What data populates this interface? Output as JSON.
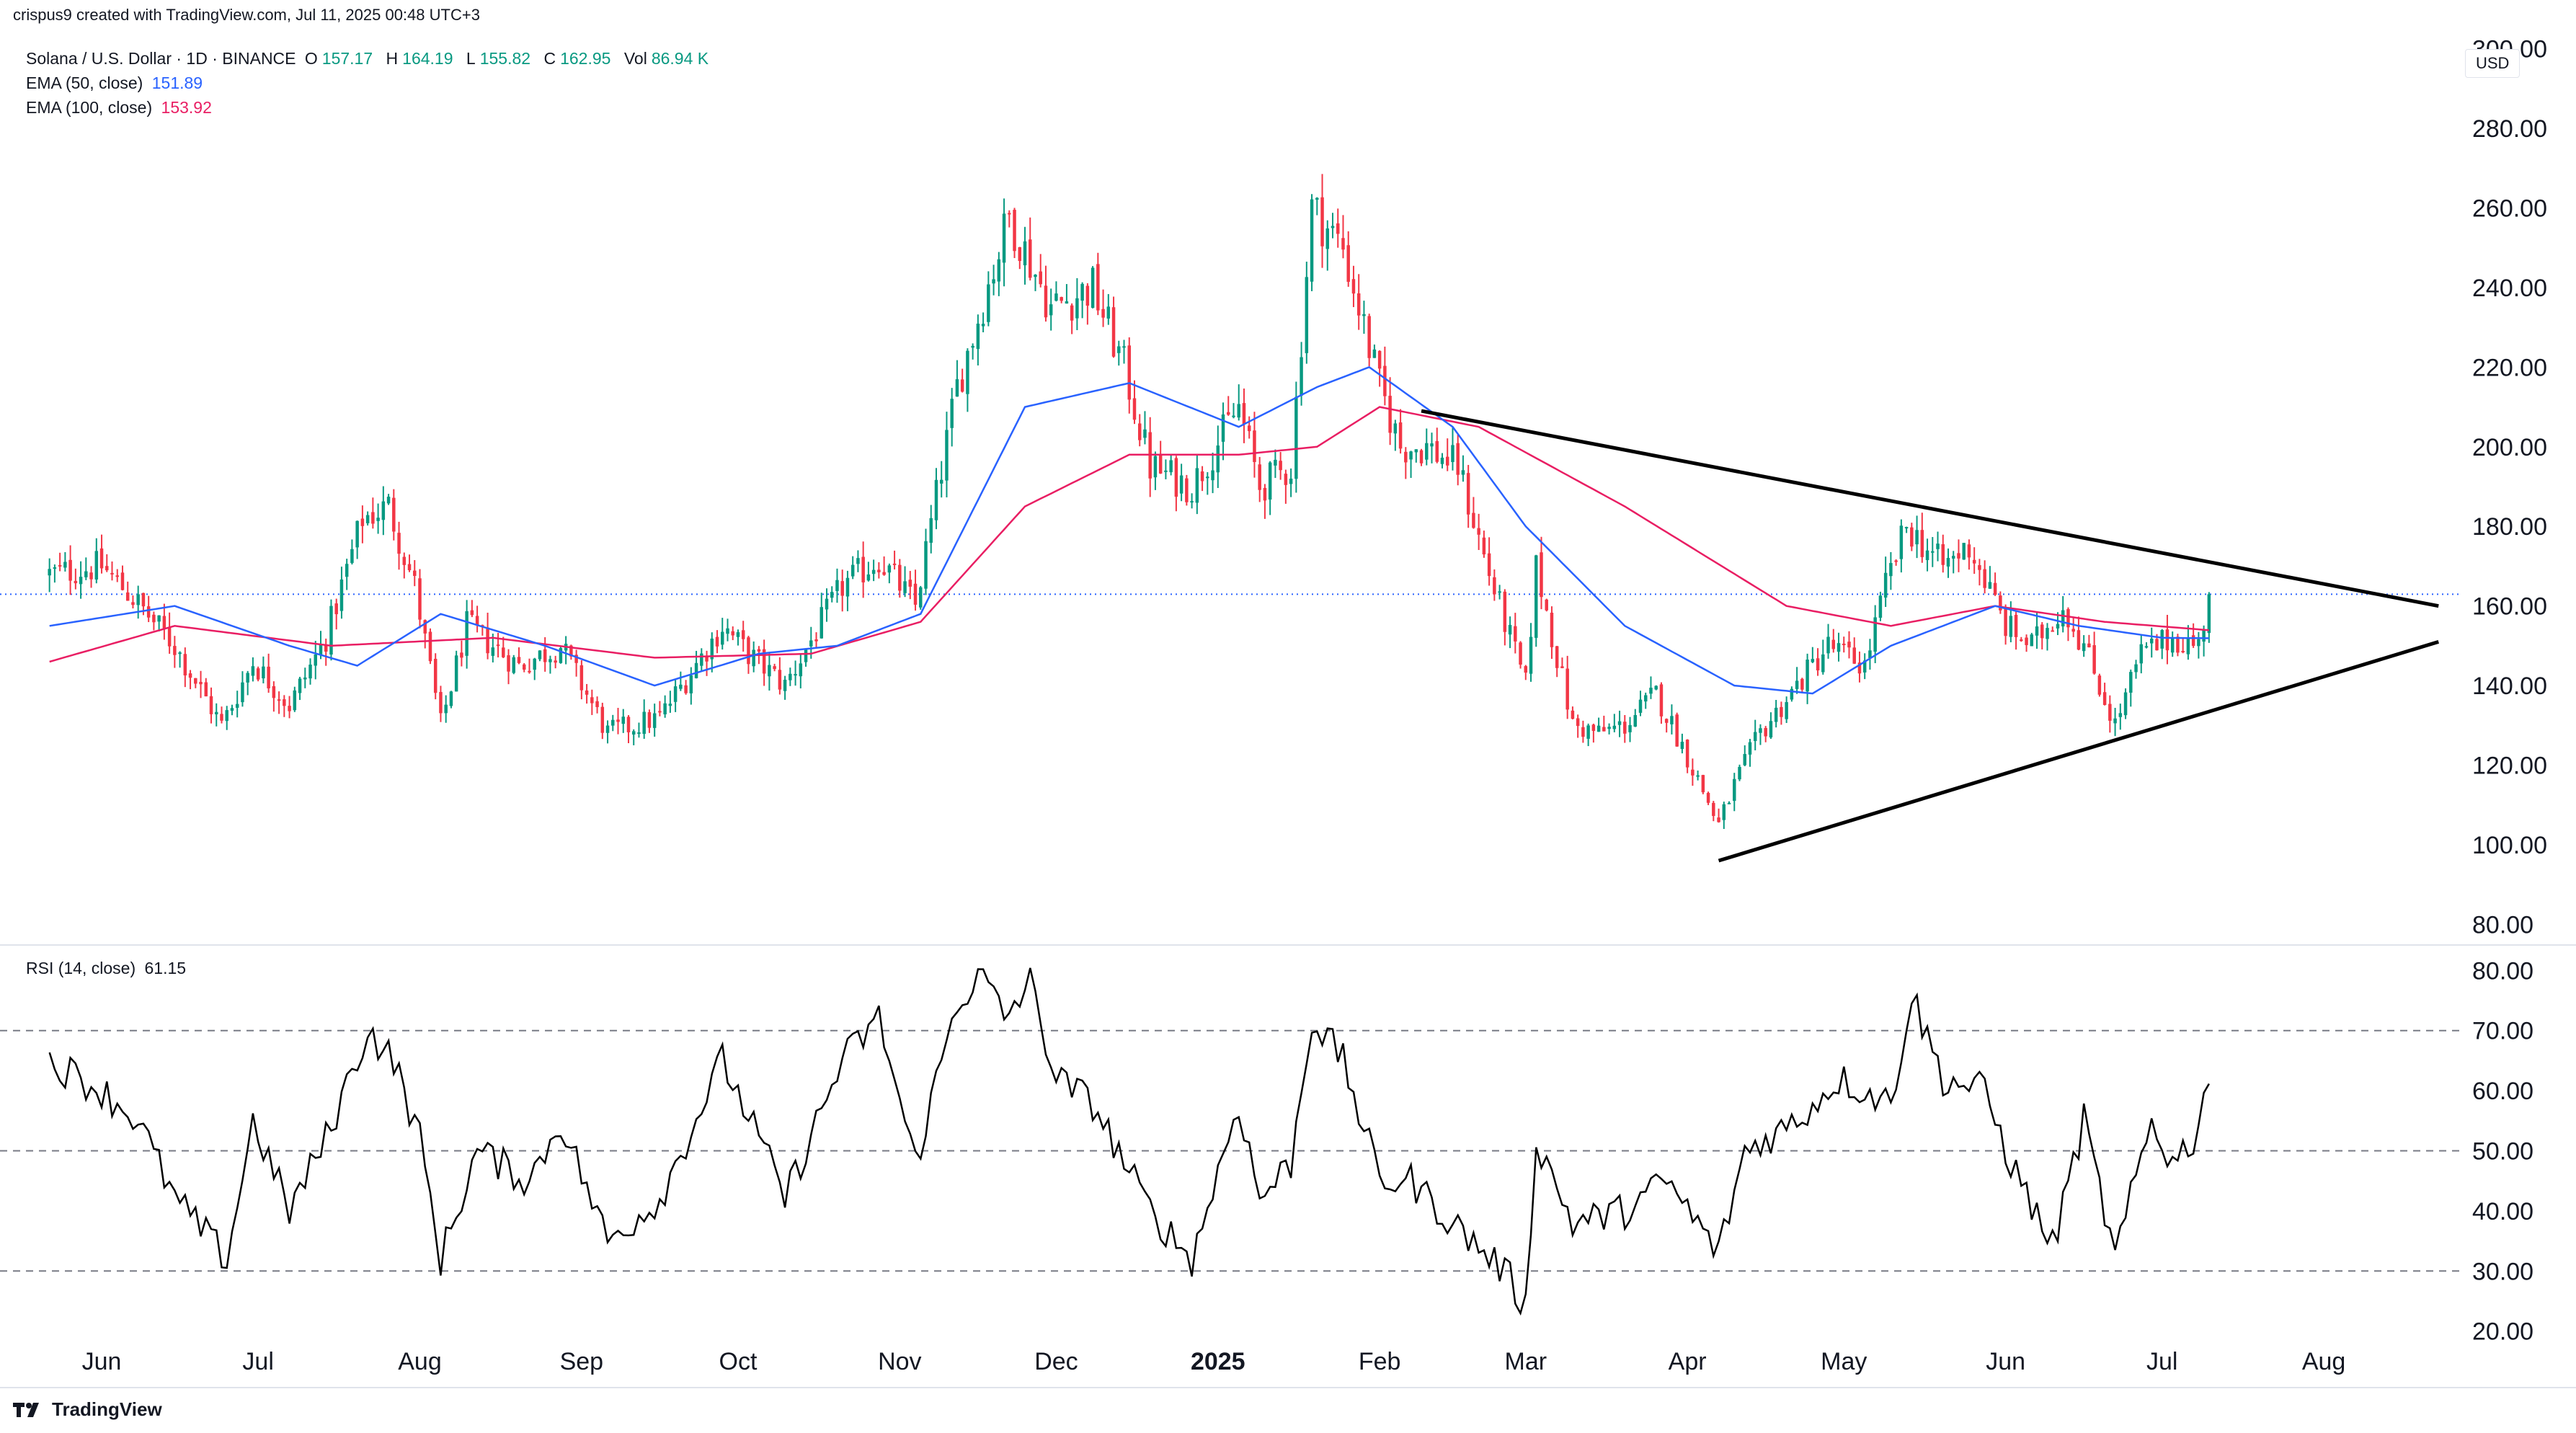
{
  "header": {
    "author_line": "crispus9 created with TradingView.com, Jul 11, 2025 00:48 UTC+3",
    "symbol": "Solana / U.S. Dollar · 1D · BINANCE",
    "ohlc": [
      {
        "key": "O",
        "value": "157.17"
      },
      {
        "key": "H",
        "value": "164.19"
      },
      {
        "key": "L",
        "value": "155.82"
      },
      {
        "key": "C",
        "value": "162.95"
      },
      {
        "key": "Vol",
        "value": "86.94 K"
      }
    ],
    "ema50_label": "EMA (50, close)",
    "ema50_value": "151.89",
    "ema100_label": "EMA (100, close)",
    "ema100_value": "153.92",
    "rsi_label": "RSI (14, close)",
    "rsi_value": "61.15",
    "currency": "USD"
  },
  "brand": {
    "name": "TradingView",
    "logo_icon": "tradingview-logo-icon"
  },
  "colors": {
    "up": "#089981",
    "down": "#f23645",
    "ema50": "#2962ff",
    "ema100": "#e91e63",
    "trend": "#000000",
    "rsi": "#000000"
  },
  "chart_data": {
    "type": "candlestick",
    "x_ticks": [
      "Jun",
      "Jul",
      "Aug",
      "Sep",
      "Oct",
      "Nov",
      "Dec",
      "2025",
      "Feb",
      "Mar",
      "Apr",
      "May",
      "Jun",
      "Jul",
      "Aug"
    ],
    "price_axis": {
      "ticks": [
        "300.00",
        "280.00",
        "260.00",
        "240.00",
        "220.00",
        "200.00",
        "180.00",
        "160.00",
        "140.00",
        "120.00",
        "100.00",
        "80.00"
      ],
      "ylim": [
        75,
        305
      ]
    },
    "last_price": 162.95,
    "close_anchors": [
      [
        "2024-05-22",
        168
      ],
      [
        "2024-06-01",
        170
      ],
      [
        "2024-06-07",
        162
      ],
      [
        "2024-06-15",
        150
      ],
      [
        "2024-06-24",
        130
      ],
      [
        "2024-06-30",
        146
      ],
      [
        "2024-07-07",
        135
      ],
      [
        "2024-07-14",
        152
      ],
      [
        "2024-07-21",
        182
      ],
      [
        "2024-07-26",
        185
      ],
      [
        "2024-07-31",
        165
      ],
      [
        "2024-08-05",
        130
      ],
      [
        "2024-08-10",
        155
      ],
      [
        "2024-08-20",
        145
      ],
      [
        "2024-08-28",
        150
      ],
      [
        "2024-09-06",
        128
      ],
      [
        "2024-09-16",
        132
      ],
      [
        "2024-09-28",
        155
      ],
      [
        "2024-10-03",
        148
      ],
      [
        "2024-10-10",
        140
      ],
      [
        "2024-10-21",
        165
      ],
      [
        "2024-10-28",
        172
      ],
      [
        "2024-11-04",
        160
      ],
      [
        "2024-11-12",
        215
      ],
      [
        "2024-11-22",
        258
      ],
      [
        "2024-11-30",
        235
      ],
      [
        "2024-12-08",
        240
      ],
      [
        "2024-12-14",
        220
      ],
      [
        "2024-12-19",
        195
      ],
      [
        "2024-12-27",
        190
      ],
      [
        "2025-01-05",
        210
      ],
      [
        "2025-01-09",
        190
      ],
      [
        "2025-01-15",
        195
      ],
      [
        "2025-01-19",
        260
      ],
      [
        "2025-01-25",
        250
      ],
      [
        "2025-02-01",
        215
      ],
      [
        "2025-02-05",
        200
      ],
      [
        "2025-02-10",
        200
      ],
      [
        "2025-02-16",
        195
      ],
      [
        "2025-02-22",
        168
      ],
      [
        "2025-03-01",
        140
      ],
      [
        "2025-03-03",
        170
      ],
      [
        "2025-03-10",
        130
      ],
      [
        "2025-03-15",
        128
      ],
      [
        "2025-03-20",
        130
      ],
      [
        "2025-03-26",
        138
      ],
      [
        "2025-03-31",
        125
      ],
      [
        "2025-04-07",
        105
      ],
      [
        "2025-04-10",
        115
      ],
      [
        "2025-04-15",
        128
      ],
      [
        "2025-04-22",
        140
      ],
      [
        "2025-04-28",
        150
      ],
      [
        "2025-05-05",
        145
      ],
      [
        "2025-05-09",
        165
      ],
      [
        "2025-05-13",
        180
      ],
      [
        "2025-05-20",
        170
      ],
      [
        "2025-05-25",
        175
      ],
      [
        "2025-06-01",
        155
      ],
      [
        "2025-06-06",
        150
      ],
      [
        "2025-06-12",
        160
      ],
      [
        "2025-06-16",
        150
      ],
      [
        "2025-06-22",
        130
      ],
      [
        "2025-06-27",
        148
      ],
      [
        "2025-07-03",
        152
      ],
      [
        "2025-07-08",
        150
      ],
      [
        "2025-07-10",
        162.95
      ]
    ],
    "ema50_anchors": [
      [
        "2024-05-22",
        155
      ],
      [
        "2024-06-15",
        160
      ],
      [
        "2024-07-07",
        150
      ],
      [
        "2024-07-20",
        145
      ],
      [
        "2024-08-05",
        158
      ],
      [
        "2024-08-25",
        150
      ],
      [
        "2024-09-15",
        140
      ],
      [
        "2024-10-05",
        148
      ],
      [
        "2024-10-20",
        150
      ],
      [
        "2024-11-05",
        158
      ],
      [
        "2024-11-25",
        210
      ],
      [
        "2024-12-15",
        216
      ],
      [
        "2025-01-05",
        205
      ],
      [
        "2025-01-20",
        215
      ],
      [
        "2025-01-30",
        220
      ],
      [
        "2025-02-15",
        205
      ],
      [
        "2025-03-01",
        180
      ],
      [
        "2025-03-20",
        155
      ],
      [
        "2025-04-10",
        140
      ],
      [
        "2025-04-25",
        138
      ],
      [
        "2025-05-10",
        150
      ],
      [
        "2025-05-30",
        160
      ],
      [
        "2025-06-15",
        155
      ],
      [
        "2025-07-01",
        152
      ],
      [
        "2025-07-10",
        151.89
      ]
    ],
    "ema100_anchors": [
      [
        "2024-05-22",
        146
      ],
      [
        "2024-06-15",
        155
      ],
      [
        "2024-07-15",
        150
      ],
      [
        "2024-08-15",
        152
      ],
      [
        "2024-09-15",
        147
      ],
      [
        "2024-10-15",
        148
      ],
      [
        "2024-11-05",
        156
      ],
      [
        "2024-11-25",
        185
      ],
      [
        "2024-12-15",
        198
      ],
      [
        "2025-01-05",
        198
      ],
      [
        "2025-01-20",
        200
      ],
      [
        "2025-02-01",
        210
      ],
      [
        "2025-02-20",
        205
      ],
      [
        "2025-03-20",
        185
      ],
      [
        "2025-04-20",
        160
      ],
      [
        "2025-05-10",
        155
      ],
      [
        "2025-05-30",
        160
      ],
      [
        "2025-06-20",
        156
      ],
      [
        "2025-07-10",
        153.92
      ]
    ],
    "trendlines": [
      {
        "from": [
          "2025-02-09",
          209
        ],
        "to": [
          "2025-08-23",
          160
        ]
      },
      {
        "from": [
          "2025-04-07",
          96
        ],
        "to": [
          "2025-08-23",
          151
        ]
      }
    ],
    "rsi": {
      "ticks": [
        "80.00",
        "70.00",
        "60.00",
        "50.00",
        "40.00",
        "30.00",
        "20.00"
      ],
      "ylim": [
        19,
        84
      ],
      "levels": [
        70,
        50,
        30
      ],
      "anchors": [
        [
          "2024-05-22",
          65
        ],
        [
          "2024-06-01",
          60
        ],
        [
          "2024-06-08",
          55
        ],
        [
          "2024-06-15",
          42
        ],
        [
          "2024-06-25",
          32
        ],
        [
          "2024-06-30",
          55
        ],
        [
          "2024-07-07",
          40
        ],
        [
          "2024-07-14",
          52
        ],
        [
          "2024-07-22",
          70
        ],
        [
          "2024-07-27",
          65
        ],
        [
          "2024-08-01",
          52
        ],
        [
          "2024-08-05",
          32
        ],
        [
          "2024-08-12",
          50
        ],
        [
          "2024-08-22",
          45
        ],
        [
          "2024-08-28",
          55
        ],
        [
          "2024-09-06",
          35
        ],
        [
          "2024-09-16",
          42
        ],
        [
          "2024-09-28",
          65
        ],
        [
          "2024-10-05",
          52
        ],
        [
          "2024-10-10",
          42
        ],
        [
          "2024-10-21",
          65
        ],
        [
          "2024-10-28",
          72
        ],
        [
          "2024-11-04",
          48
        ],
        [
          "2024-11-12",
          75
        ],
        [
          "2024-11-17",
          79
        ],
        [
          "2024-11-21",
          72
        ],
        [
          "2024-11-26",
          78
        ],
        [
          "2024-12-01",
          62
        ],
        [
          "2024-12-08",
          58
        ],
        [
          "2024-12-14",
          48
        ],
        [
          "2024-12-19",
          40
        ],
        [
          "2024-12-27",
          32
        ],
        [
          "2025-01-05",
          58
        ],
        [
          "2025-01-09",
          42
        ],
        [
          "2025-01-15",
          48
        ],
        [
          "2025-01-19",
          72
        ],
        [
          "2025-01-25",
          65
        ],
        [
          "2025-02-01",
          45
        ],
        [
          "2025-02-07",
          45
        ],
        [
          "2025-02-15",
          38
        ],
        [
          "2025-02-25",
          30
        ],
        [
          "2025-03-01",
          24
        ],
        [
          "2025-03-03",
          52
        ],
        [
          "2025-03-10",
          38
        ],
        [
          "2025-03-20",
          40
        ],
        [
          "2025-03-28",
          45
        ],
        [
          "2025-04-07",
          33
        ],
        [
          "2025-04-12",
          50
        ],
        [
          "2025-04-22",
          55
        ],
        [
          "2025-04-30",
          62
        ],
        [
          "2025-05-10",
          58
        ],
        [
          "2025-05-14",
          76
        ],
        [
          "2025-05-20",
          62
        ],
        [
          "2025-05-28",
          60
        ],
        [
          "2025-06-02",
          48
        ],
        [
          "2025-06-10",
          34
        ],
        [
          "2025-06-16",
          55
        ],
        [
          "2025-06-22",
          32
        ],
        [
          "2025-06-29",
          55
        ],
        [
          "2025-07-03",
          48
        ],
        [
          "2025-07-07",
          52
        ],
        [
          "2025-07-10",
          61.15
        ]
      ]
    }
  }
}
